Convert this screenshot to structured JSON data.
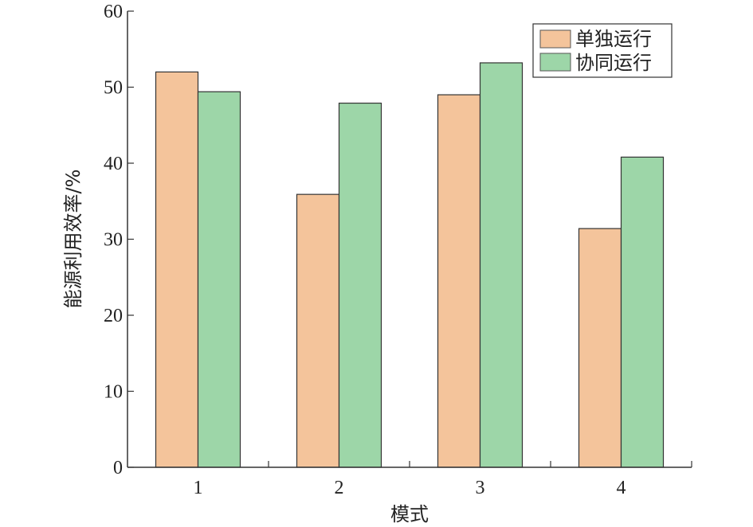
{
  "chart_data": {
    "type": "bar",
    "xlabel": "模式",
    "ylabel": "能源利用效率/%",
    "categories": [
      "1",
      "2",
      "3",
      "4"
    ],
    "ylim": [
      0,
      60
    ],
    "yticks": [
      "0",
      "10",
      "20",
      "30",
      "40",
      "50",
      "60"
    ],
    "grid": false,
    "legend_position": "top-right",
    "series": [
      {
        "name": "单独运行",
        "color": "#F4C49B",
        "values": [
          52.0,
          35.9,
          49.0,
          31.4
        ]
      },
      {
        "name": "协同运行",
        "color": "#9DD6A8",
        "values": [
          49.4,
          47.9,
          53.2,
          40.8
        ]
      }
    ]
  }
}
